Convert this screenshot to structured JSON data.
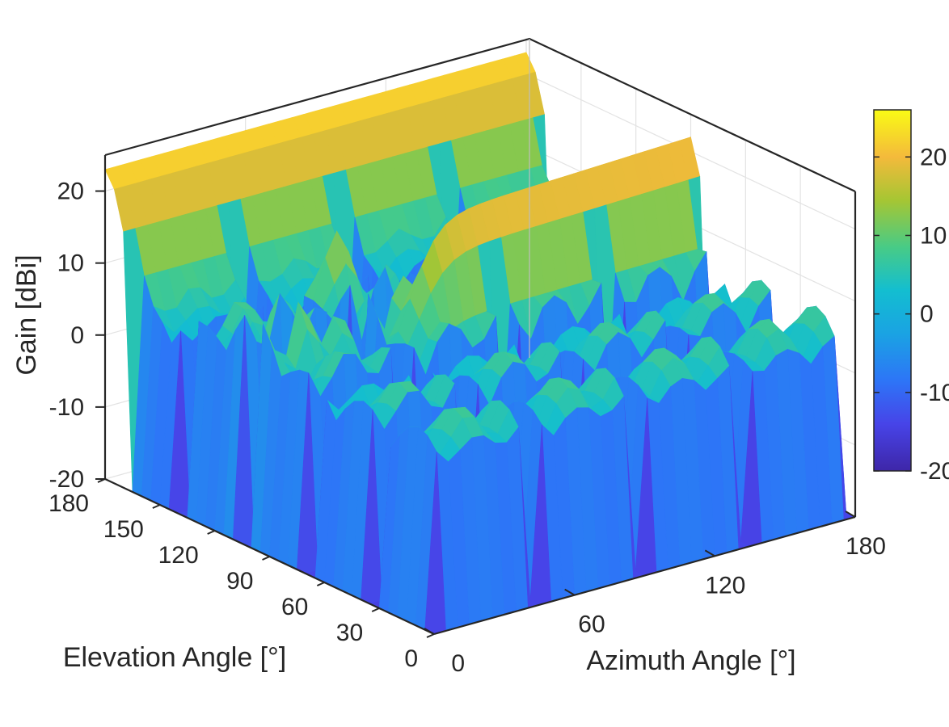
{
  "chart_data": {
    "type": "surface",
    "xlabel": "Azimuth Angle [°]",
    "ylabel": "Elevation Angle [°]",
    "zlabel": "Gain [dBi]",
    "x_ticks": [
      "0",
      "60",
      "120",
      "180"
    ],
    "y_ticks": [
      "0",
      "30",
      "60",
      "90",
      "120",
      "150",
      "180"
    ],
    "z_ticks": [
      "-20",
      "-10",
      "0",
      "10",
      "20"
    ],
    "colorbar_ticks": [
      "-20",
      "-10",
      "0",
      "10",
      "20"
    ],
    "xlim": [
      0,
      180
    ],
    "ylim": [
      0,
      180
    ],
    "zlim": [
      -20,
      25
    ],
    "clim": [
      -20,
      26
    ],
    "colormap": "parula",
    "grid": true,
    "colorbar_position": "right",
    "surface_features": {
      "peak_gain_approx": 24,
      "ridge_high_elevation": {
        "elevation": 180,
        "gain_approx": 23
      },
      "ridge_mid_elevation": {
        "elevation": 90,
        "azimuth_range": [
          60,
          180
        ],
        "gain_approx": 20
      },
      "sidelobe_peak": {
        "azimuth": 60,
        "elevation": 130,
        "gain_approx": 15
      },
      "null_depth_approx": -20
    }
  }
}
